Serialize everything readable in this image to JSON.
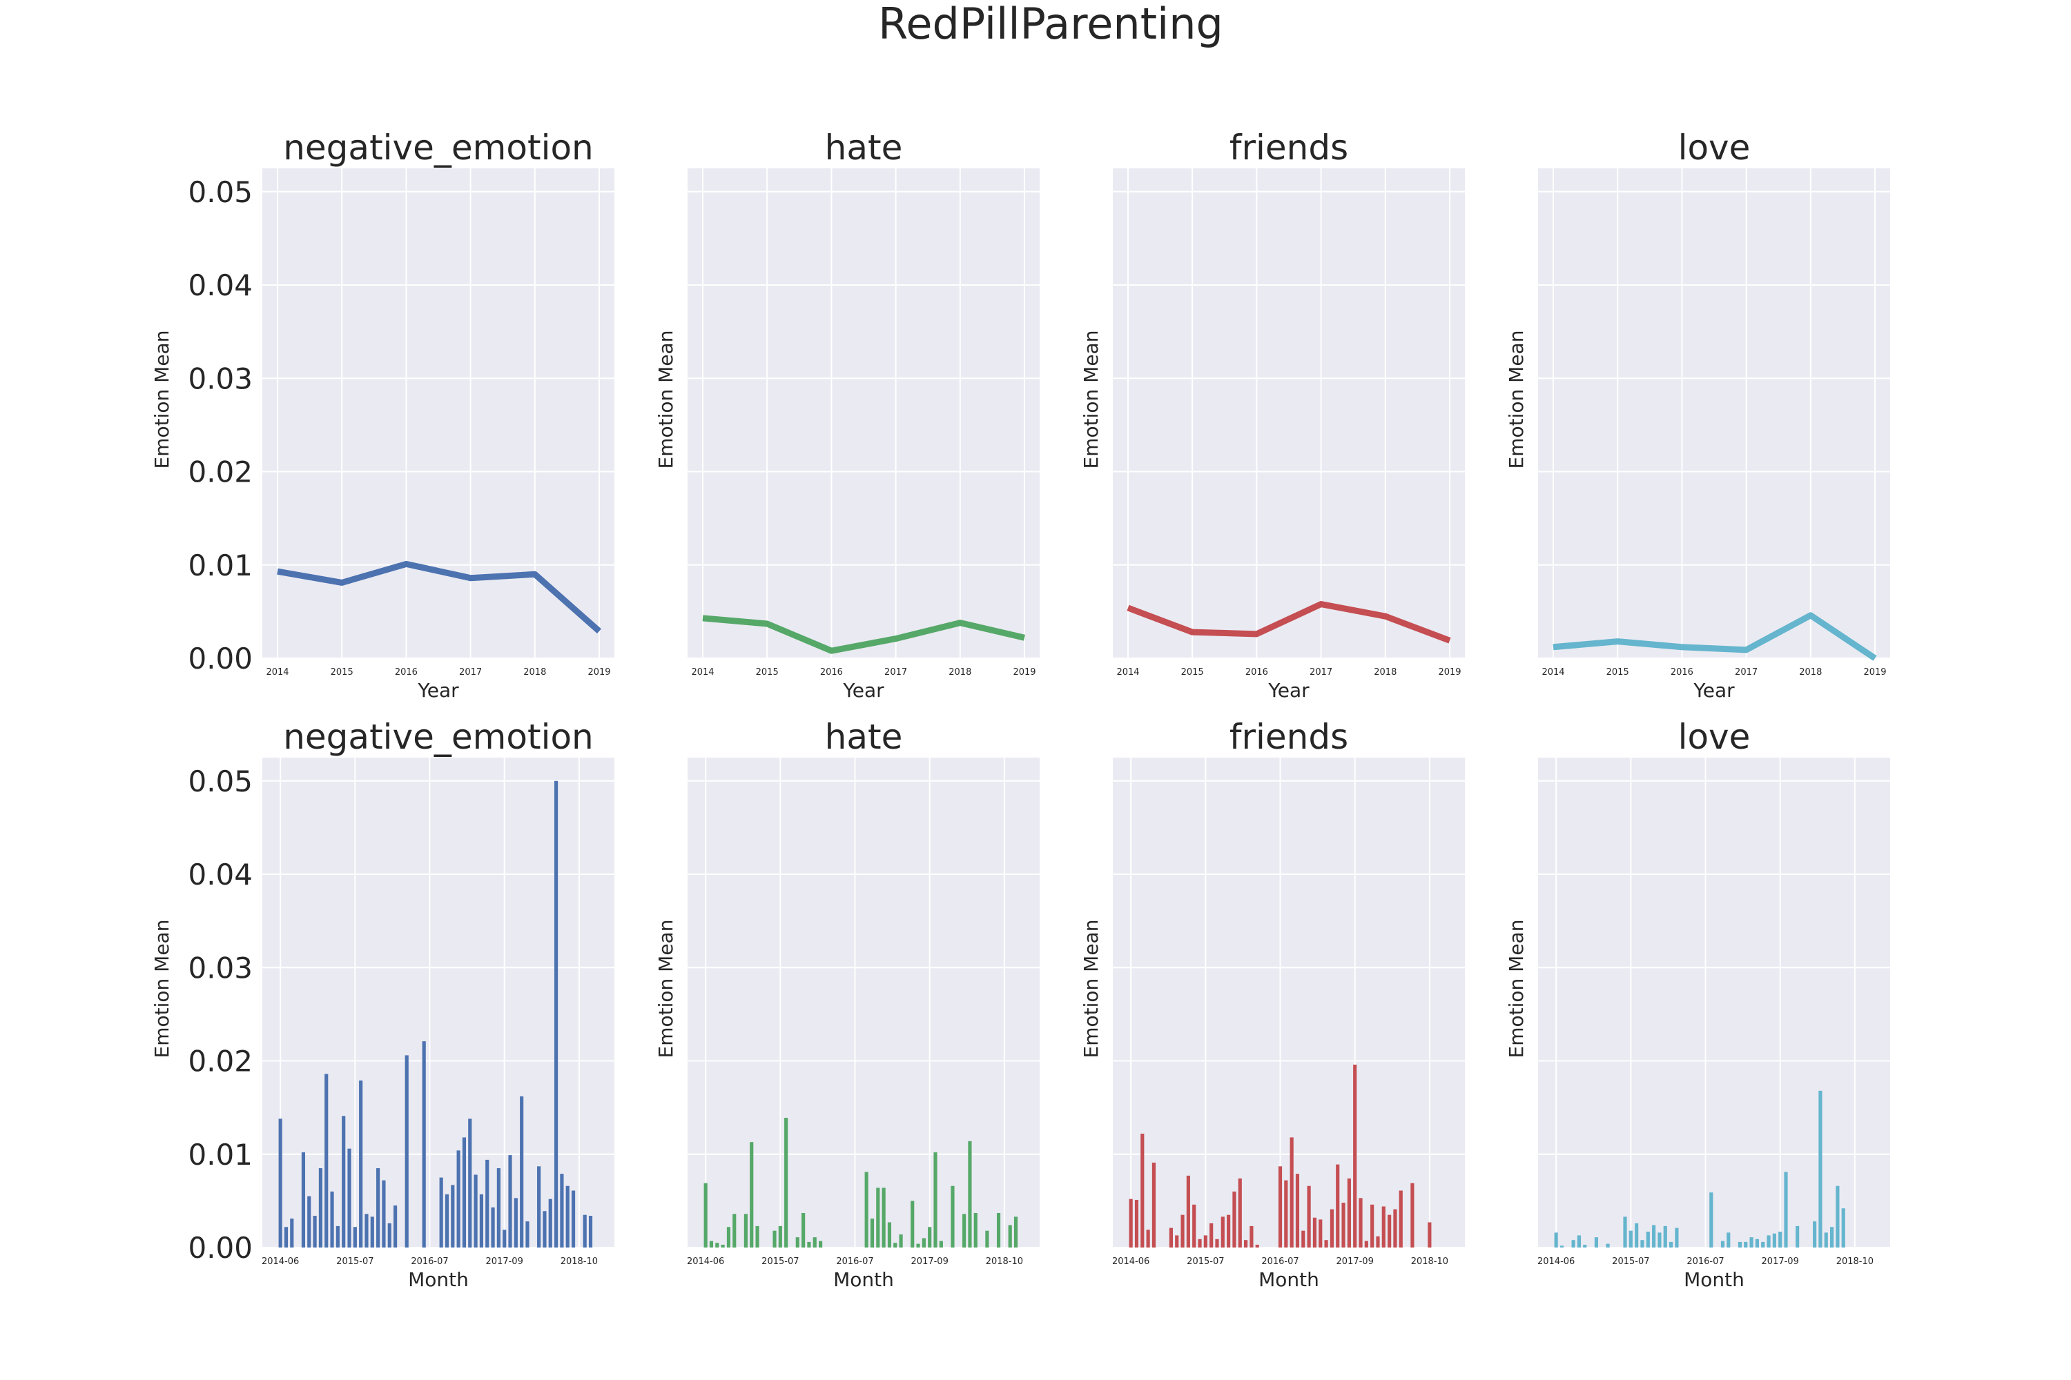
{
  "figure": {
    "title": "RedPillParenting",
    "colors": {
      "background": "#ffffff",
      "axes_face": "#eaeaf2",
      "grid": "#ffffff"
    }
  },
  "chart_data": [
    {
      "type": "line",
      "title": "negative_emotion",
      "xlabel": "Year",
      "ylabel": "Emotion Mean",
      "x": [
        "2014",
        "2015",
        "2016",
        "2017",
        "2018",
        "2019"
      ],
      "values": [
        0.0093,
        0.0081,
        0.0101,
        0.0086,
        0.009,
        0.0029
      ],
      "ylim": [
        0,
        0.0525
      ],
      "yticks": [
        "0.00",
        "0.01",
        "0.02",
        "0.03",
        "0.04",
        "0.05"
      ],
      "color": "#4c72b0",
      "grid": true
    },
    {
      "type": "line",
      "title": "hate",
      "xlabel": "Year",
      "ylabel": "Emotion Mean",
      "x": [
        "2014",
        "2015",
        "2016",
        "2017",
        "2018",
        "2019"
      ],
      "values": [
        0.0043,
        0.0037,
        0.0008,
        0.0021,
        0.0038,
        0.0022
      ],
      "ylim": [
        0,
        0.0525
      ],
      "color": "#55a868",
      "grid": true
    },
    {
      "type": "line",
      "title": "friends",
      "xlabel": "Year",
      "ylabel": "Emotion Mean",
      "x": [
        "2014",
        "2015",
        "2016",
        "2017",
        "2018",
        "2019"
      ],
      "values": [
        0.0054,
        0.0028,
        0.0026,
        0.0058,
        0.0045,
        0.0019
      ],
      "ylim": [
        0,
        0.0525
      ],
      "color": "#c44e52",
      "grid": true
    },
    {
      "type": "line",
      "title": "love",
      "xlabel": "Year",
      "ylabel": "Emotion Mean",
      "x": [
        "2014",
        "2015",
        "2016",
        "2017",
        "2018",
        "2019"
      ],
      "values": [
        0.0012,
        0.0018,
        0.0012,
        0.0009,
        0.0046,
        0.0
      ],
      "ylim": [
        0,
        0.0525
      ],
      "color": "#64b5cd",
      "grid": true
    },
    {
      "type": "bar",
      "title": "negative_emotion",
      "xlabel": "Month",
      "ylabel": "Emotion Mean",
      "xticks": [
        "2014-06",
        "2015-07",
        "2016-07",
        "2017-09",
        "2018-10"
      ],
      "values": [
        0.0138,
        0.0022,
        0.0031,
        0,
        0.0102,
        0.0055,
        0.0034,
        0.0085,
        0.0186,
        0.006,
        0.0023,
        0.0141,
        0.0106,
        0.0022,
        0.0179,
        0.0036,
        0.0033,
        0.0085,
        0.0072,
        0.0026,
        0.0045,
        0,
        0.0206,
        0,
        0,
        0.0221,
        0,
        0,
        0.0075,
        0.0057,
        0.0067,
        0.0104,
        0.0118,
        0.0138,
        0.0078,
        0.0057,
        0.0094,
        0.0043,
        0.0085,
        0.0019,
        0.0099,
        0.0053,
        0.0162,
        0.0028,
        0,
        0.0087,
        0.0039,
        0.0052,
        0.05,
        0.0079,
        0.0066,
        0.0061,
        0,
        0.0035,
        0.0034,
        0
      ],
      "ylim": [
        0,
        0.0525
      ],
      "yticks": [
        "0.00",
        "0.01",
        "0.02",
        "0.03",
        "0.04",
        "0.05"
      ],
      "color": "#4c72b0",
      "grid": true
    },
    {
      "type": "bar",
      "title": "hate",
      "xlabel": "Month",
      "ylabel": "Emotion Mean",
      "xticks": [
        "2014-06",
        "2015-07",
        "2016-07",
        "2017-09",
        "2018-10"
      ],
      "values": [
        0.0069,
        0.0007,
        0.0005,
        0.0003,
        0.0022,
        0.0036,
        0,
        0.0036,
        0.0113,
        0.0023,
        0,
        0,
        0.0018,
        0.0023,
        0.0139,
        0,
        0.0011,
        0.0037,
        0.0006,
        0.0011,
        0.0007,
        0,
        0,
        0,
        0,
        0,
        0,
        0,
        0.0081,
        0.0031,
        0.0064,
        0.0064,
        0.0027,
        0.0005,
        0.0014,
        0,
        0.005,
        0.0004,
        0.001,
        0.0022,
        0.0102,
        0.0007,
        0,
        0.0066,
        0,
        0.0036,
        0.0114,
        0.0037,
        0,
        0.0018,
        0,
        0.0037,
        0,
        0.0024,
        0.0033,
        0
      ],
      "ylim": [
        0,
        0.0525
      ],
      "color": "#55a868",
      "grid": true
    },
    {
      "type": "bar",
      "title": "friends",
      "xlabel": "Month",
      "ylabel": "Emotion Mean",
      "xticks": [
        "2014-06",
        "2015-07",
        "2016-07",
        "2017-09",
        "2018-10"
      ],
      "values": [
        0.0052,
        0.0051,
        0.0122,
        0.0019,
        0.0091,
        0,
        0,
        0.0021,
        0.0013,
        0.0035,
        0.0077,
        0.0046,
        0.0009,
        0.0013,
        0.0026,
        0.0009,
        0.0033,
        0.0035,
        0.006,
        0.0074,
        0.0008,
        0.0023,
        0.0003,
        0,
        0,
        0,
        0.0087,
        0.0072,
        0.0118,
        0.0079,
        0.0018,
        0.0066,
        0.0032,
        0.003,
        0.0008,
        0.0041,
        0.0089,
        0.0048,
        0.0074,
        0.0196,
        0.0053,
        0.0007,
        0.0046,
        0.0012,
        0.0044,
        0.0035,
        0.0041,
        0.0061,
        0,
        0.0069,
        0,
        0,
        0.0027,
        0,
        0,
        0
      ],
      "ylim": [
        0,
        0.0525
      ],
      "color": "#c44e52",
      "grid": true
    },
    {
      "type": "bar",
      "title": "love",
      "xlabel": "Month",
      "ylabel": "Emotion Mean",
      "xticks": [
        "2014-06",
        "2015-07",
        "2016-07",
        "2017-09",
        "2018-10"
      ],
      "values": [
        0.0016,
        0.0002,
        0,
        0.0008,
        0.0013,
        0.0003,
        0,
        0.0011,
        0,
        0.0004,
        0,
        0,
        0.0033,
        0.0018,
        0.0026,
        0.0008,
        0.0017,
        0.0024,
        0.0016,
        0.0023,
        0.0006,
        0.0021,
        0,
        0,
        0,
        0,
        0,
        0.0059,
        0,
        0.0007,
        0.0016,
        0,
        0.0006,
        0.0006,
        0.0011,
        0.0009,
        0.0006,
        0.0013,
        0.0015,
        0.0017,
        0.0081,
        0,
        0.0023,
        0,
        0,
        0.0028,
        0.0168,
        0.0016,
        0.0022,
        0.0066,
        0.0042,
        0,
        0,
        0,
        0,
        0
      ],
      "ylim": [
        0,
        0.0525
      ],
      "color": "#64b5cd",
      "grid": true
    }
  ]
}
